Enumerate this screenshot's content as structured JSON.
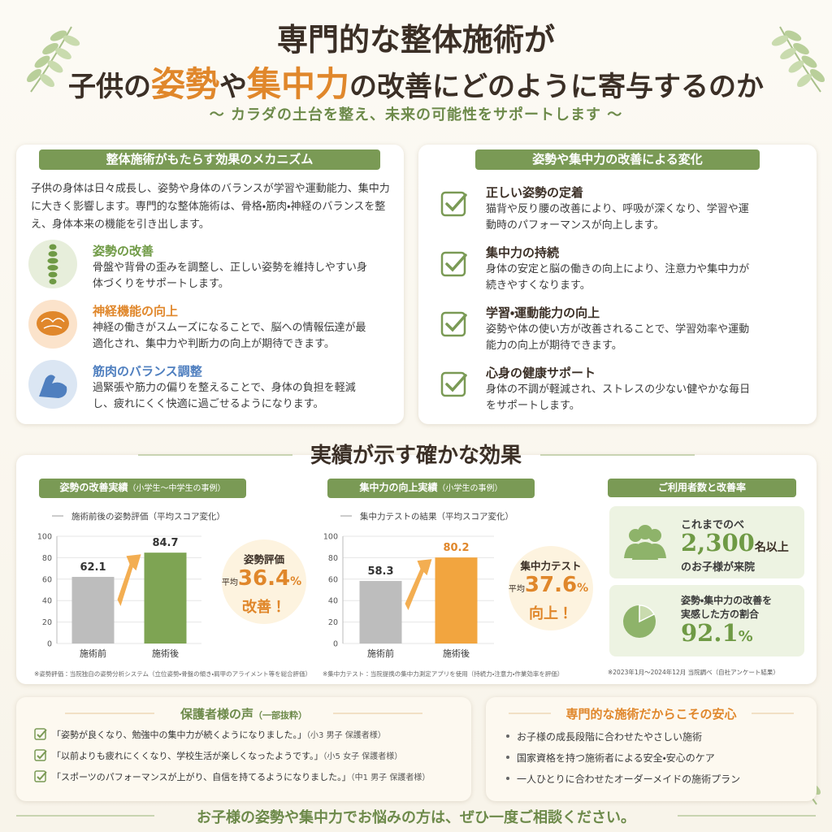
{
  "header": {
    "title_line1": "専門的な整体施術が",
    "title_line2": [
      {
        "text": "子供の"
      },
      {
        "text": "姿勢",
        "color": "#e0872b"
      },
      {
        "text": "や"
      },
      {
        "text": "集中力",
        "color": "#e0872b"
      },
      {
        "text": "の改善にどのように寄与するのか"
      }
    ],
    "subtitle": "〜 カラダの土台を整え、未来の可能性をサポートします 〜"
  },
  "mechanism": {
    "title": "整体施術がもたらす効果のメカニズム",
    "intro": "子供の身体は日々成長し、姿勢や身体のバランスが学習や運動能力、集中力に大きく影響します。専門的な整体施術は、骨格・筋肉・神経のバランスを整え、身体本来の機能を引き出します。",
    "items": [
      {
        "title": "姿勢の改善",
        "color": "#6f9a45",
        "text": "骨盤や背骨の歪みを調整し、正しい姿勢を維持しやすい身体づくりをサポートします。"
      },
      {
        "title": "神経機能の向上",
        "color": "#e0872b",
        "text": "神経の働きがスムーズになることで、脳への情報伝達が最適化され、集中力や判断力の向上が期待できます。"
      },
      {
        "title": "筋肉のバランス調整",
        "color": "#4f7fbf",
        "text": "過緊張や筋力の偏りを整えることで、身体の負担を軽減し、疲れにくく快適に過ごせるようになります。"
      }
    ]
  },
  "changes": {
    "title": "姿勢や集中力の改善による変化",
    "items": [
      {
        "title": "正しい姿勢の定着",
        "text": "猫背や反り腰の改善により、呼吸が深くなり、学習や運動時のパフォーマンスが向上します。"
      },
      {
        "title": "集中力の持続",
        "text": "身体の安定と脳の働きの向上により、注意力や集中力が続きやすくなります。"
      },
      {
        "title": "学習・運動能力の向上",
        "text": "姿勢や体の使い方が改善されることで、学習効率や運動能力の向上が期待できます。"
      },
      {
        "title": "心身の健康サポート",
        "text": "身体の不調が軽減され、ストレスの少ない健やかな毎日をサポートします。"
      }
    ]
  },
  "results": {
    "title": "実績が示す確かな効果"
  },
  "chart_data": [
    {
      "type": "bar",
      "title": "姿勢の改善実績",
      "title_note": "（小学生〜中学生の事例）",
      "subtitle": "施術前後の姿勢評価（平均スコア変化）",
      "categories": [
        "施術前",
        "施術後"
      ],
      "values": [
        62.1,
        84.7
      ],
      "colors": [
        "#bdbdbd",
        "#7ea453"
      ],
      "ylim": [
        0,
        100
      ],
      "yticks": [
        0,
        20,
        40,
        60,
        80,
        100
      ],
      "grid": true,
      "callout": {
        "label": "姿勢評価",
        "prefix": "平均",
        "value": 36.4,
        "unit": "%",
        "suffix": "改善！"
      },
      "note": "※姿勢評価：当院独自の姿勢分析システム（立位姿勢・骨盤の傾き・肩甲のアライメント等を総合評価）"
    },
    {
      "type": "bar",
      "title": "集中力の向上実績",
      "title_note": "（小学生の事例）",
      "subtitle": "集中力テストの結果（平均スコア変化）",
      "categories": [
        "施術前",
        "施術後"
      ],
      "values": [
        58.3,
        80.2
      ],
      "colors": [
        "#bdbdbd",
        "#f2a53f"
      ],
      "ylim": [
        0,
        100
      ],
      "yticks": [
        0,
        20,
        40,
        60,
        80,
        100
      ],
      "grid": true,
      "callout": {
        "label": "集中力テスト",
        "prefix": "平均",
        "value": 37.6,
        "unit": "%",
        "suffix": "向上！"
      },
      "note": "※集中力テスト：当院提携の集中力測定アプリを使用（持続力・注意力・作業効率を評価）"
    }
  ],
  "stats": {
    "title": "ご利用者数と改善率",
    "users": {
      "pre": "これまでのべ",
      "number": "2,300",
      "unit": "名以上",
      "post": "のお子様が来院"
    },
    "rate": {
      "line1": "姿勢・集中力の改善を",
      "line2": "実感した方の割合",
      "number": "92.1",
      "unit": "%"
    },
    "note": "※2023年1月〜2024年12月 当院調べ（自社アンケート結果）"
  },
  "voices": {
    "title": "保護者様の声",
    "title_note": "（一部抜粋）",
    "items": [
      {
        "quote": "「姿勢が良くなり、勉強中の集中力が続くようになりました。」",
        "who": "（小3 男子 保護者様）"
      },
      {
        "quote": "「以前よりも疲れにくくなり、学校生活が楽しくなったようです。」",
        "who": "（小5 女子 保護者様）"
      },
      {
        "quote": "「スポーツのパフォーマンスが上がり、自信を持てるようになりました。」",
        "who": "（中1 男子 保護者様）"
      }
    ]
  },
  "assurance": {
    "title": "専門的な施術だからこその安心",
    "items": [
      "お子様の成長段階に合わせたやさしい施術",
      "国家資格を持つ施術者による安全・安心のケア",
      "一人ひとりに合わせたオーダーメイドの施術プラン"
    ]
  },
  "footer": "お子様の姿勢や集中力でお悩みの方は、ぜひ一度ご相談ください。"
}
